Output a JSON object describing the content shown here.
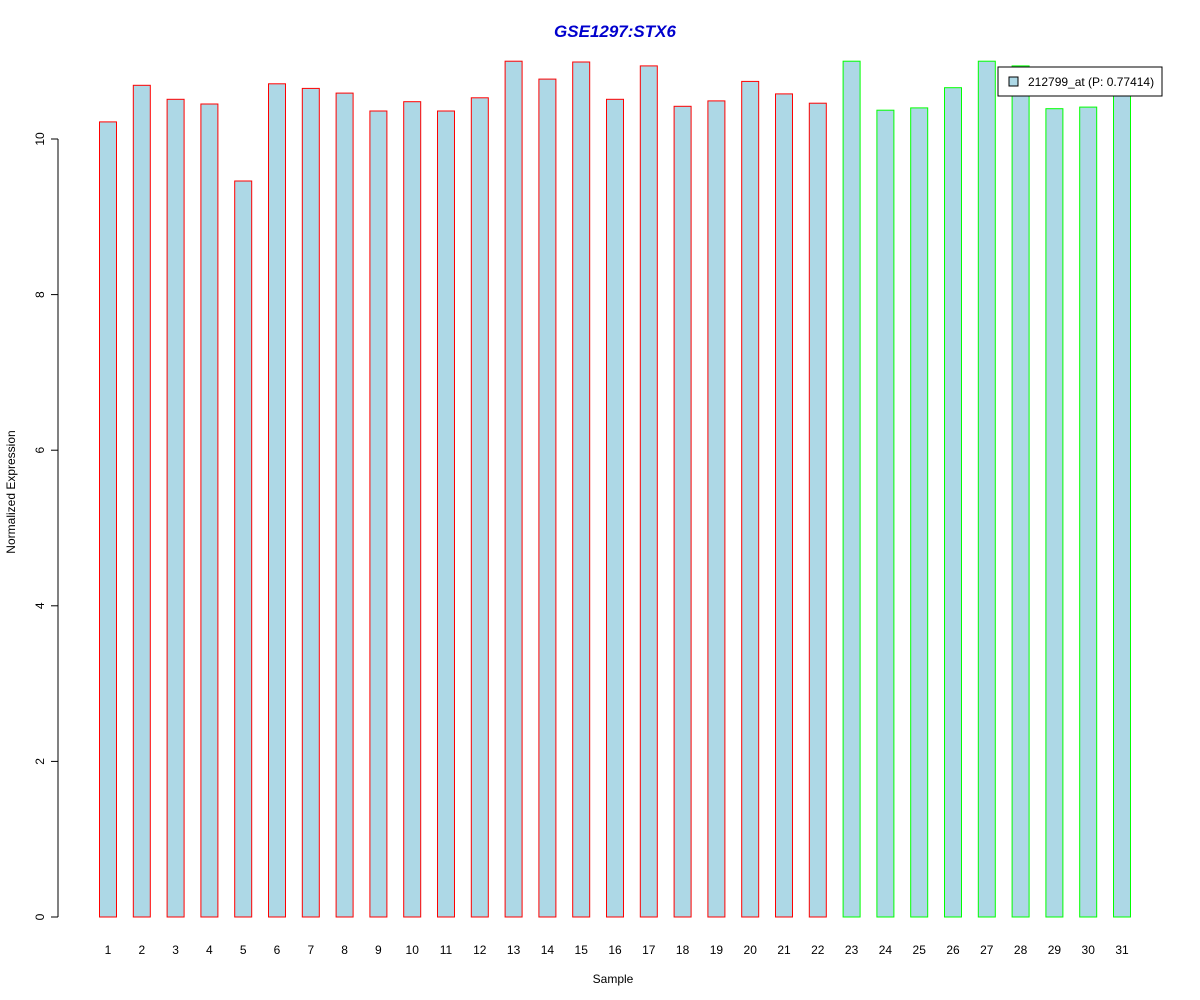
{
  "chart_data": {
    "type": "bar",
    "title": "GSE1297:STX6",
    "xlabel": "Sample",
    "ylabel": "Normalized Expression",
    "ylim": [
      0,
      11
    ],
    "yticks": [
      0,
      2,
      4,
      6,
      8,
      10
    ],
    "grid": false,
    "legend_position": "top-right",
    "categories": [
      "1",
      "2",
      "3",
      "4",
      "5",
      "6",
      "7",
      "8",
      "9",
      "10",
      "11",
      "12",
      "13",
      "14",
      "15",
      "16",
      "17",
      "18",
      "19",
      "20",
      "21",
      "22",
      "23",
      "24",
      "25",
      "26",
      "27",
      "28",
      "29",
      "30",
      "31"
    ],
    "series": [
      {
        "name": "212799_at (P: 0.77414)",
        "values": [
          10.22,
          10.69,
          10.51,
          10.45,
          9.46,
          10.71,
          10.65,
          10.59,
          10.36,
          10.48,
          10.36,
          10.53,
          11.0,
          10.77,
          10.99,
          10.51,
          10.94,
          10.42,
          10.49,
          10.74,
          10.58,
          10.46,
          11.0,
          10.37,
          10.4,
          10.66,
          11.0,
          10.94,
          10.39,
          10.41,
          10.64
        ],
        "group": [
          "a",
          "a",
          "a",
          "a",
          "a",
          "a",
          "a",
          "a",
          "a",
          "a",
          "a",
          "a",
          "a",
          "a",
          "a",
          "a",
          "a",
          "a",
          "a",
          "a",
          "a",
          "a",
          "b",
          "b",
          "b",
          "b",
          "b",
          "b",
          "b",
          "b",
          "b"
        ]
      }
    ],
    "colors": {
      "fill": "#add8e6",
      "group_a_border": "#ff0000",
      "group_b_border": "#00ff00",
      "title": "#0000cd",
      "legend_fill": "#add8e6"
    }
  }
}
